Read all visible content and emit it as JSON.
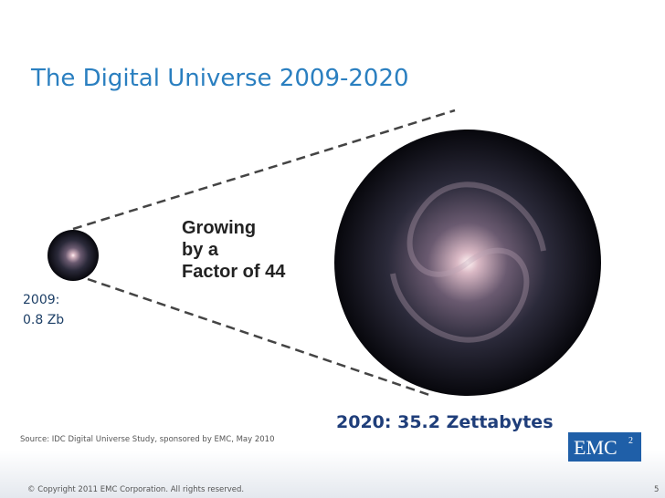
{
  "header": {
    "title": "The Digital Universe 2009-2020"
  },
  "callout": {
    "lines": [
      "Growing",
      "by a",
      "Factor of 44"
    ]
  },
  "small_label": {
    "lines": [
      "2009:",
      "0.8 Zb"
    ]
  },
  "large_label": "2020: 35.2 Zettabytes",
  "source": "Source: IDC Digital Universe Study, sponsored by EMC, May 2010",
  "footer": {
    "copyright": "© Copyright 2011 EMC Corporation. All rights reserved.",
    "page": "5"
  },
  "logo": {
    "text": "EMC",
    "superscript": "2"
  }
}
